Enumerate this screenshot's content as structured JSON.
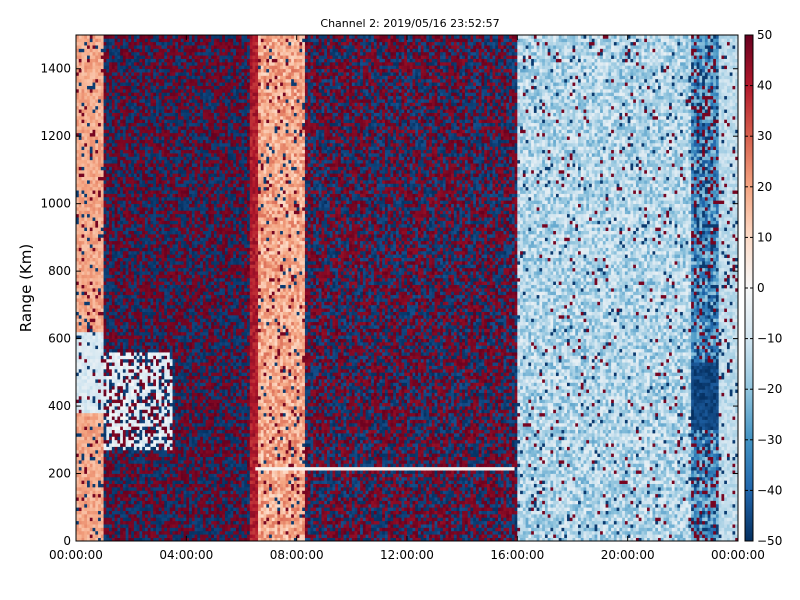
{
  "chart_data": {
    "type": "heatmap",
    "title": "Channel 2: 2019/05/16 23:52:57",
    "xlabel": "",
    "ylabel": "Range (Km)",
    "x_range": [
      "00:00:00",
      "24:00:00"
    ],
    "x_ticks": [
      "00:00:00",
      "04:00:00",
      "08:00:00",
      "12:00:00",
      "16:00:00",
      "20:00:00",
      "00:00:00"
    ],
    "x_tick_hours": [
      0,
      4,
      8,
      12,
      16,
      20,
      24
    ],
    "ylim": [
      0,
      1500
    ],
    "y_ticks": [
      0,
      200,
      400,
      600,
      800,
      1000,
      1200,
      1400
    ],
    "colorbar": {
      "range": [
        -50,
        50
      ],
      "ticks": [
        50,
        40,
        30,
        20,
        10,
        0,
        -10,
        -20,
        -30,
        -40,
        -50
      ],
      "tick_labels": [
        "50",
        "40",
        "30",
        "20",
        "10",
        "0",
        "−10",
        "−20",
        "−30",
        "−40",
        "−50"
      ],
      "colormap": "RdBu_r",
      "colors": [
        "#053061",
        "#2166ac",
        "#4393c3",
        "#92c5de",
        "#d1e5f0",
        "#f7f7f7",
        "#fddbc7",
        "#f4a582",
        "#d6604d",
        "#b2182b",
        "#67001f"
      ]
    },
    "regions": [
      {
        "name": "noise",
        "hours": [
          1,
          6.3
        ],
        "description": "alternating saturated values"
      },
      {
        "name": "positive-band",
        "hours": [
          6.3,
          8
        ],
        "approx_value": 20
      },
      {
        "name": "noise",
        "hours": [
          8.5,
          16
        ],
        "description": "alternating saturated values"
      },
      {
        "name": "negative-band",
        "hours": [
          16.5,
          22.5
        ],
        "approx_value": -15
      },
      {
        "name": "strong-negative-patch",
        "hours": [
          22.3,
          23.2
        ],
        "range_km": [
          330,
          530
        ],
        "approx_value": -45
      }
    ],
    "horizontal_line": {
      "range_km": 215,
      "hours": [
        6.5,
        15.9
      ]
    },
    "grid": false,
    "legend": "colorbar-right"
  }
}
